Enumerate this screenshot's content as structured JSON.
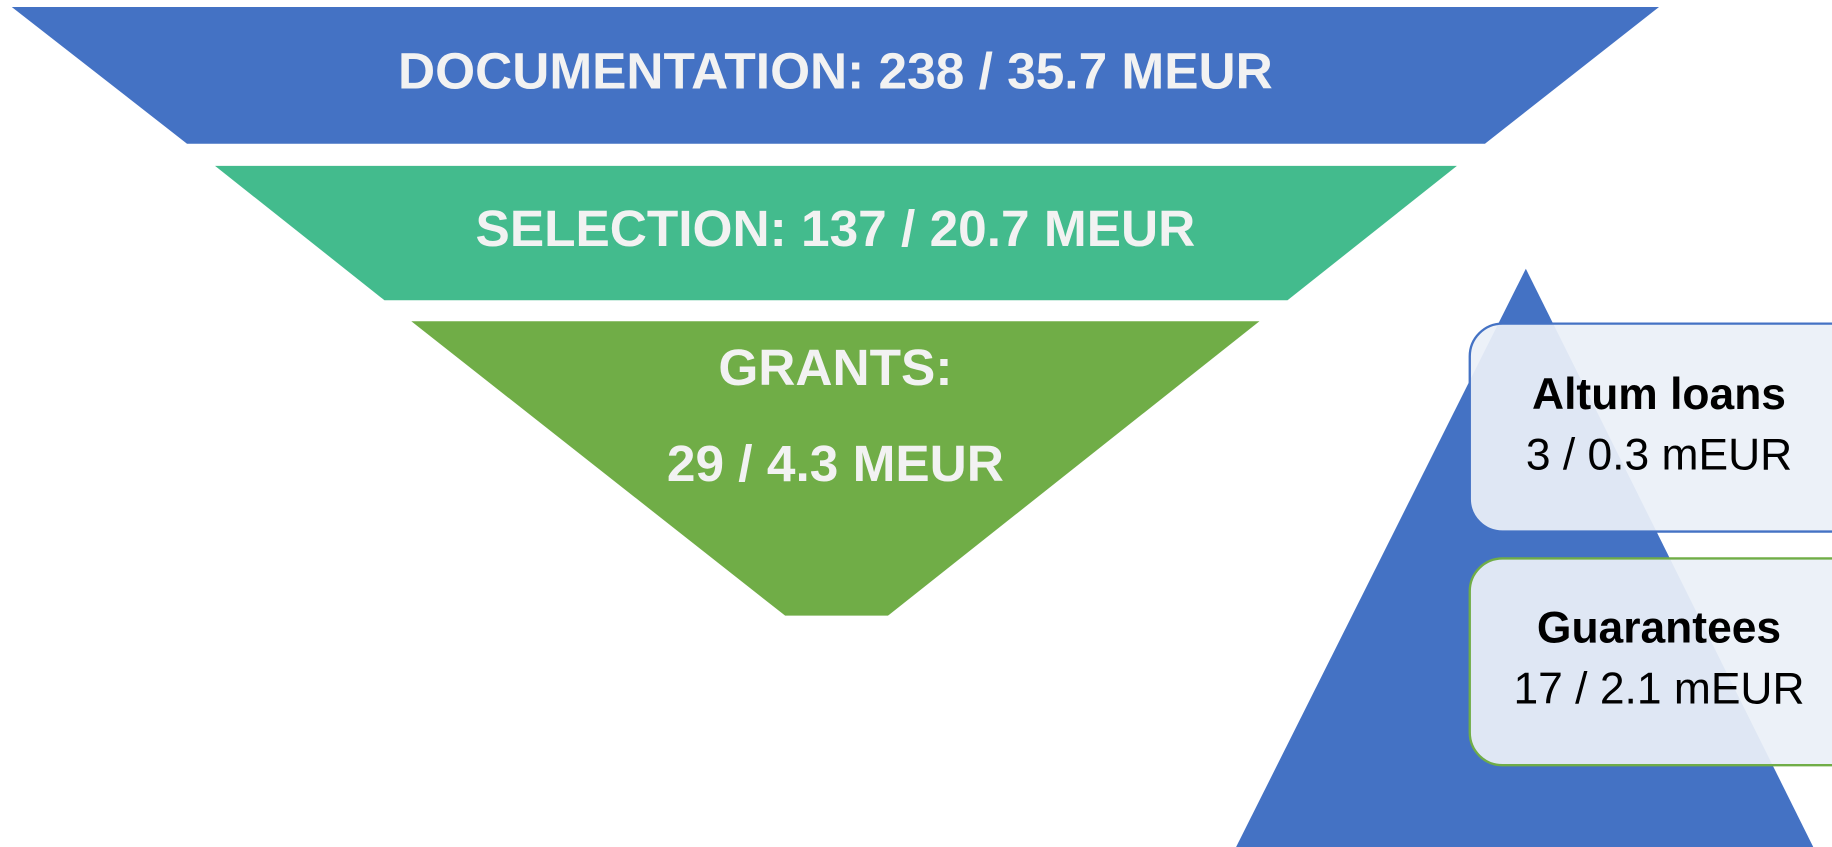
{
  "funnel": {
    "stages": [
      {
        "label": "DOCUMENTATION: 238 / 35.7 MEUR"
      },
      {
        "label": "SELECTION: 137 / 20.7 MEUR"
      },
      {
        "label": "GRANTS:",
        "sublabel": "29 / 4.3 MEUR"
      }
    ]
  },
  "side": {
    "boxes": [
      {
        "title": "Altum loans",
        "value": "3 / 0.3 mEUR"
      },
      {
        "title": "Guarantees",
        "value": "17 / 2.1 mEUR"
      }
    ]
  }
}
